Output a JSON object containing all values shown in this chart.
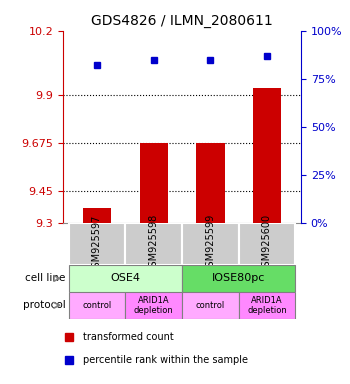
{
  "title": "GDS4826 / ILMN_2080611",
  "samples": [
    "GSM925597",
    "GSM925598",
    "GSM925599",
    "GSM925600"
  ],
  "bar_values": [
    9.37,
    9.675,
    9.675,
    9.93
  ],
  "percentile_values": [
    82,
    85,
    85,
    87
  ],
  "left_ylim": [
    9.3,
    10.2
  ],
  "right_ylim": [
    0,
    100
  ],
  "left_yticks": [
    9.3,
    9.45,
    9.675,
    9.9,
    10.2
  ],
  "right_yticks": [
    0,
    25,
    50,
    75,
    100
  ],
  "right_yticklabels": [
    "0%",
    "25%",
    "50%",
    "75%",
    "100%"
  ],
  "bar_color": "#cc0000",
  "dot_color": "#0000cc",
  "bar_width": 0.5,
  "cell_line_labels": [
    "OSE4",
    "IOSE80pc"
  ],
  "cell_line_groups": [
    [
      0,
      1
    ],
    [
      2,
      3
    ]
  ],
  "cell_line_colors": [
    "#ccffcc",
    "#66dd66"
  ],
  "protocol_labels": [
    "control",
    "ARID1A\ndepletion",
    "control",
    "ARID1A\ndepletion"
  ],
  "protocol_colors": [
    "#ffaaff",
    "#ff88ff",
    "#ffaaff",
    "#ff88ff"
  ],
  "sample_box_color": "#cccccc",
  "legend_bar_label": "transformed count",
  "legend_dot_label": "percentile rank within the sample",
  "left_axis_color": "#cc0000",
  "right_axis_color": "#0000cc",
  "grid_color": "#000000",
  "xlabel_rotation": -90
}
